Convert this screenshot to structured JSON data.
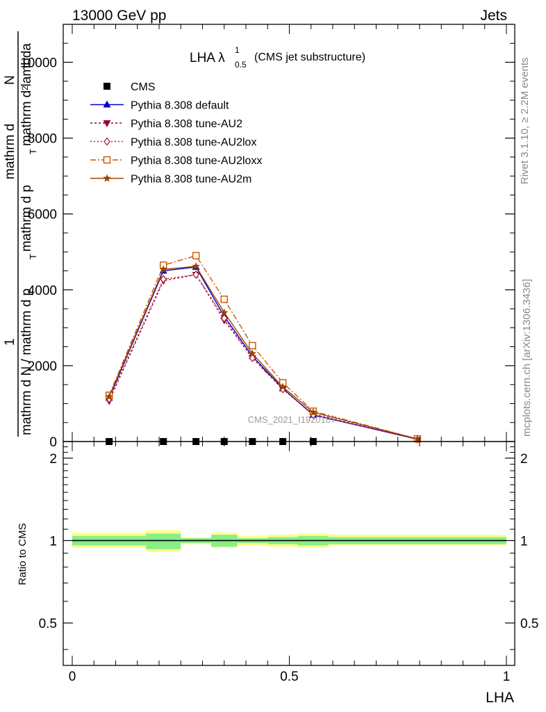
{
  "header": {
    "left": "13000 GeV pp",
    "right": "Jets"
  },
  "side_labels": {
    "rivet": "Rivet 3.1.10, ≥ 2.2M events",
    "mcplots": "mcplots.cern.ch [arXiv:1306.3436]"
  },
  "watermark": "CMS_2021_I1920187",
  "chart_data": [
    {
      "type": "line",
      "title_main": "LHA λ",
      "title_sup": "1",
      "title_sub": "0.5",
      "title_suffix": "(CMS jet substructure)",
      "ylabel_top": "1",
      "ylabel_lines": [
        "mathrm d N / mathrm d p",
        "T",
        "mathrm d p",
        "T",
        "mathrm d lambda",
        "mathrm d",
        "2",
        "N"
      ],
      "xlim": [
        0,
        1
      ],
      "ylim": [
        0,
        11000
      ],
      "yticks": [
        0,
        2000,
        4000,
        6000,
        8000,
        10000
      ],
      "ytick_labels": [
        "0",
        "2000",
        "4000",
        "6000",
        "8000",
        "10000"
      ],
      "grid": false,
      "legend_position": "top-left",
      "data_x": [
        0.085,
        0.21,
        0.285,
        0.35,
        0.415,
        0.485,
        0.555,
        0.795
      ],
      "series": [
        {
          "name": "CMS",
          "color": "#000000",
          "marker": "square-filled",
          "dash": "none",
          "values": [
            0,
            0,
            0,
            0,
            0,
            0,
            0,
            null
          ]
        },
        {
          "name": "Pythia 8.308 default",
          "color": "#0000cc",
          "marker": "triangle-up-filled",
          "dash": "solid",
          "values": [
            1150,
            4500,
            4600,
            3300,
            2250,
            1400,
            700,
            60
          ]
        },
        {
          "name": "Pythia 8.308 tune-AU2",
          "color": "#990033",
          "marker": "triangle-down-filled",
          "dash": "3,3",
          "values": [
            1070,
            4240,
            4400,
            3200,
            2200,
            1380,
            720,
            60
          ]
        },
        {
          "name": "Pythia 8.308 tune-AU2lox",
          "color": "#b0203a",
          "marker": "diamond-open",
          "dash": "2,3",
          "values": [
            1120,
            4280,
            4400,
            3250,
            2200,
            1380,
            700,
            60
          ]
        },
        {
          "name": "Pythia 8.308 tune-AU2loxx",
          "color": "#cc5500",
          "marker": "square-open",
          "dash": "8,3,2,3",
          "values": [
            1220,
            4650,
            4900,
            3750,
            2530,
            1550,
            800,
            70
          ]
        },
        {
          "name": "Pythia 8.308 tune-AU2m",
          "color": "#994400",
          "marker": "star",
          "dash": "solid",
          "values": [
            1180,
            4540,
            4620,
            3400,
            2320,
            1440,
            770,
            70
          ]
        }
      ]
    },
    {
      "type": "area",
      "ylabel": "Ratio to CMS",
      "xlabel": "LHA",
      "xlim": [
        0,
        1
      ],
      "ylim": [
        0.35,
        2.3
      ],
      "scale": "log",
      "xticks": [
        0,
        0.5,
        1
      ],
      "xtick_labels": [
        "0",
        "0.5",
        "1"
      ],
      "yticks": [
        0.5,
        1,
        2
      ],
      "ytick_labels": [
        "0.5",
        "1",
        "2"
      ],
      "reference": 1,
      "bins": [
        0,
        0.17,
        0.25,
        0.32,
        0.38,
        0.45,
        0.52,
        0.59,
        1.0
      ],
      "band_inner": [
        [
          0.96,
          1.04
        ],
        [
          0.93,
          1.06
        ],
        [
          0.98,
          1.02
        ],
        [
          0.95,
          1.05
        ],
        [
          0.98,
          1.02
        ],
        [
          0.97,
          1.03
        ],
        [
          0.96,
          1.04
        ],
        [
          0.97,
          1.03
        ]
      ],
      "band_outer": [
        [
          0.94,
          1.07
        ],
        [
          0.91,
          1.09
        ],
        [
          0.97,
          1.03
        ],
        [
          0.94,
          1.07
        ],
        [
          0.96,
          1.04
        ],
        [
          0.95,
          1.05
        ],
        [
          0.94,
          1.06
        ],
        [
          0.96,
          1.05
        ]
      ],
      "band_colors": {
        "inner": "#88ee88",
        "outer": "#ffff88"
      }
    }
  ]
}
